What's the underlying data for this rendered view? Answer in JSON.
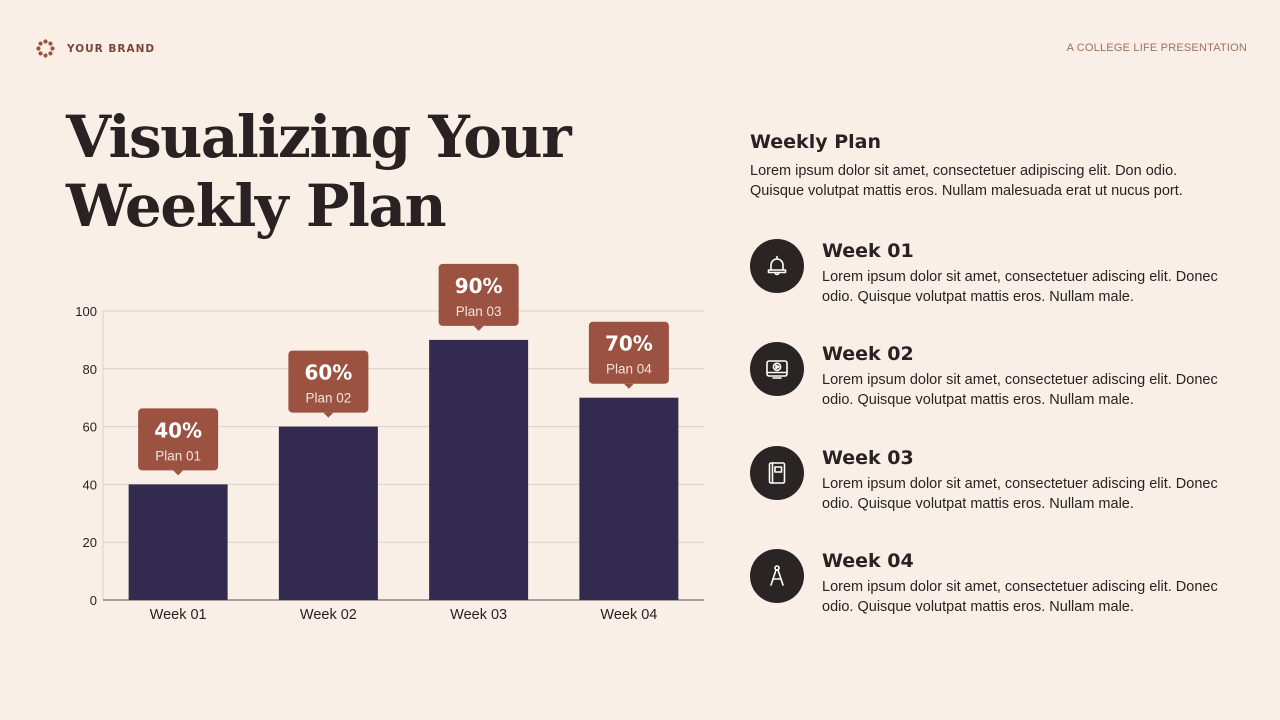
{
  "header": {
    "brand": "YOUR BRAND",
    "tagline": "A COLLEGE LIFE PRESENTATION"
  },
  "title": "Visualizing Your Weekly Plan",
  "panel": {
    "heading": "Weekly Plan",
    "description": "Lorem ipsum dolor sit amet, consectetuer adipiscing elit. Don odio. Quisque volutpat mattis eros. Nullam malesuada erat ut nucus port.",
    "items": [
      {
        "title": "Week 01",
        "desc": "Lorem ipsum dolor sit amet, consectetuer adiscing elit. Donec odio. Quisque volutpat mattis eros. Nullam male.",
        "icon": "bell-icon"
      },
      {
        "title": "Week 02",
        "desc": "Lorem ipsum dolor sit amet, consectetuer adiscing elit. Donec odio. Quisque volutpat mattis eros. Nullam male.",
        "icon": "video-play-icon"
      },
      {
        "title": "Week 03",
        "desc": "Lorem ipsum dolor sit amet, consectetuer adiscing elit. Donec odio. Quisque volutpat mattis eros. Nullam male.",
        "icon": "notebook-icon"
      },
      {
        "title": "Week 04",
        "desc": "Lorem ipsum dolor sit amet, consectetuer adiscing elit. Donec odio. Quisque volutpat mattis eros. Nullam male.",
        "icon": "compass-icon"
      }
    ]
  },
  "colors": {
    "background": "#f9efe6",
    "bar": "#332b4f",
    "label_box": "#9c5241",
    "text": "#2a2222",
    "icon_circle": "#2a2424",
    "brand": "#7a4538"
  },
  "chart_data": {
    "type": "bar",
    "categories": [
      "Week 01",
      "Week 02",
      "Week 03",
      "Week 04"
    ],
    "values": [
      40,
      60,
      90,
      70
    ],
    "ylim": [
      0,
      100
    ],
    "yticks": [
      0,
      20,
      40,
      60,
      80,
      100
    ],
    "grid": true,
    "annotations": [
      {
        "value": "40%",
        "label": "Plan 01"
      },
      {
        "value": "60%",
        "label": "Plan 02"
      },
      {
        "value": "90%",
        "label": "Plan 03"
      },
      {
        "value": "70%",
        "label": "Plan 04"
      }
    ],
    "title": "",
    "xlabel": "",
    "ylabel": ""
  }
}
